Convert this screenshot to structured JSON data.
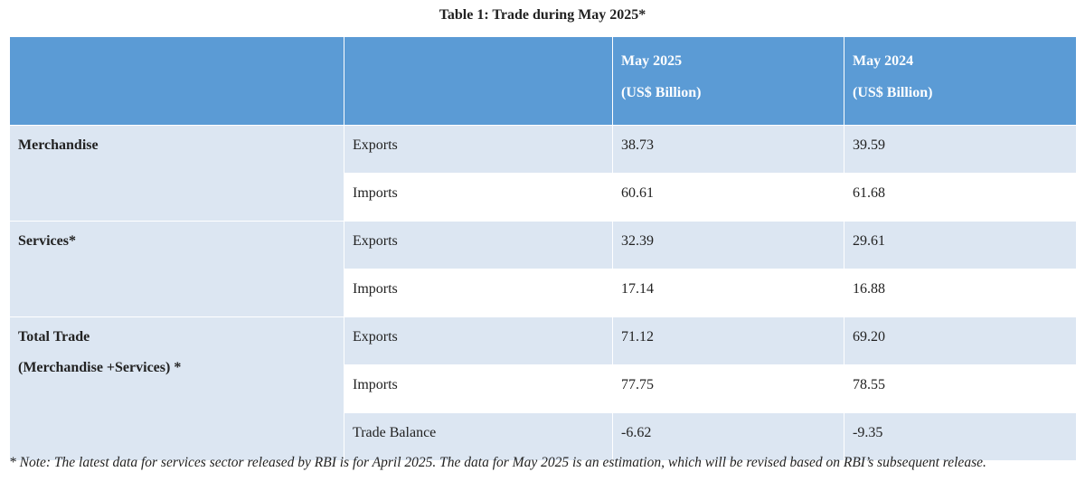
{
  "title": "Table 1: Trade during May 2025*",
  "header": {
    "col1": "",
    "col2": "",
    "col3_line1": "May 2025",
    "col3_line2": "(US$ Billion)",
    "col4_line1": "May 2024",
    "col4_line2": "(US$ Billion)"
  },
  "groups": {
    "merchandise": "Merchandise",
    "services": "Services*",
    "total_line1": "Total Trade",
    "total_line2": "(Merchandise +Services) *"
  },
  "rows": [
    {
      "label": "Exports",
      "may2025": "38.73",
      "may2024": "39.59"
    },
    {
      "label": "Imports",
      "may2025": "60.61",
      "may2024": "61.68"
    },
    {
      "label": "Exports",
      "may2025": "32.39",
      "may2024": "29.61"
    },
    {
      "label": "Imports",
      "may2025": "17.14",
      "may2024": "16.88"
    },
    {
      "label": "Exports",
      "may2025": "71.12",
      "may2024": "69.20"
    },
    {
      "label": "Imports",
      "may2025": "77.75",
      "may2024": "78.55"
    },
    {
      "label": "Trade Balance",
      "may2025": "-6.62",
      "may2024": "-9.35"
    }
  ],
  "note": "* Note: The latest data for services sector released by RBI is for April 2025. The data for May 2025 is an estimation, which will be revised based on RBI’s subsequent release.",
  "colors": {
    "header_bg": "#5b9bd5",
    "shaded_row_bg": "#dce6f2",
    "plain_row_bg": "#ffffff"
  }
}
